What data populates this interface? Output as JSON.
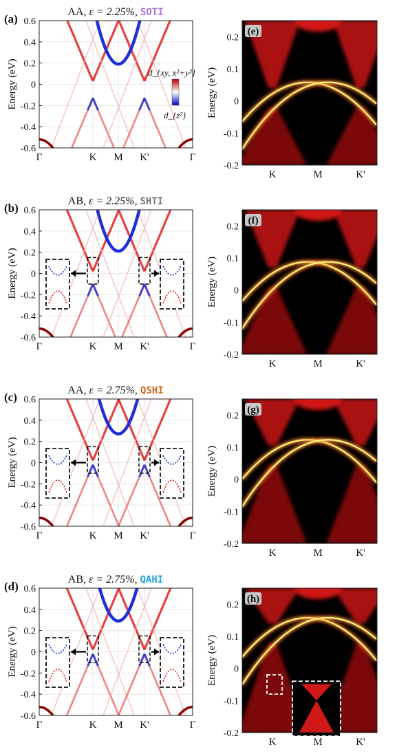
{
  "figure": {
    "colorbar": {
      "top_label": "d_{xy, x²+y²}",
      "bottom_label": "d_{z²}",
      "colors": [
        "#cc0000",
        "#ffffff",
        "#0000cc"
      ]
    },
    "colors": {
      "red": "#e02020",
      "blue": "#1f2fd8",
      "darkred": "#8b0000",
      "soti": "#b06fd8",
      "shti": "#7a7a7a",
      "qshi": "#d2691e",
      "qahi": "#1ea7e6"
    }
  },
  "chart_data": [
    {
      "id": "a",
      "panel_label": "(a)",
      "type": "line",
      "title": {
        "stack": "AA",
        "strain": "ε = 2.25%",
        "phase": "SOTI",
        "phase_color": "#b06fd8"
      },
      "ylabel": "Energy (eV)",
      "ylim": [
        -0.6,
        0.6
      ],
      "yticks": [
        "0.6",
        "0.4",
        "0.2",
        "0",
        "-0.2",
        "-0.4",
        "-0.6"
      ],
      "xticks": [
        "Γ",
        "K",
        "M",
        "K'",
        "Γ"
      ],
      "gap_conduction_min": 0.03,
      "gap_valence_max": -0.13,
      "m_band_min": 0.19
    },
    {
      "id": "b",
      "panel_label": "(b)",
      "type": "line",
      "title": {
        "stack": "AB",
        "strain": "ε = 2.25%",
        "phase": "SHTI",
        "phase_color": "#7a7a7a"
      },
      "ylabel": "Energy (eV)",
      "ylim": [
        -0.6,
        0.6
      ],
      "yticks": [
        "0.6",
        "0.4",
        "0.2",
        "0",
        "-0.2",
        "-0.4",
        "-0.6"
      ],
      "xticks": [
        "Γ",
        "K",
        "M",
        "K'",
        "Γ"
      ],
      "gap_conduction_min": 0.02,
      "gap_valence_max": -0.1,
      "m_band_min": 0.21
    },
    {
      "id": "c",
      "panel_label": "(c)",
      "type": "line",
      "title": {
        "stack": "AA",
        "strain": "ε = 2.75%",
        "phase": "QSHI",
        "phase_color": "#d2691e"
      },
      "ylabel": "Energy (eV)",
      "ylim": [
        -0.6,
        0.6
      ],
      "yticks": [
        "0.6",
        "0.4",
        "0.2",
        "0",
        "-0.2",
        "-0.4",
        "-0.6"
      ],
      "xticks": [
        "Γ",
        "K",
        "M",
        "K'",
        "Γ"
      ],
      "gap_conduction_min": 0.02,
      "gap_valence_max": -0.02,
      "m_band_min": 0.27
    },
    {
      "id": "d",
      "panel_label": "(d)",
      "type": "line",
      "title": {
        "stack": "AB",
        "strain": "ε = 2.75%",
        "phase": "QAHI",
        "phase_color": "#1ea7e6"
      },
      "ylabel": "Energy (eV)",
      "ylim": [
        -0.6,
        0.6
      ],
      "yticks": [
        "0.6",
        "0.4",
        "0.2",
        "0",
        "-0.2",
        "-0.4",
        "-0.6"
      ],
      "xticks": [
        "Γ",
        "K",
        "M",
        "K'",
        "Γ"
      ],
      "gap_conduction_min": 0.02,
      "gap_valence_max": -0.02,
      "m_band_min": 0.29
    },
    {
      "id": "e",
      "panel_label": "(e)",
      "type": "heatmap",
      "ylabel": "Energy (eV)",
      "ylim": [
        -0.2,
        0.25
      ],
      "yticks": [
        "0.2",
        "0.1",
        "0",
        "-0.1",
        "-0.2"
      ],
      "xticks": [
        "K",
        "M",
        "K'"
      ],
      "edge_state_crossing_energy": 0.02
    },
    {
      "id": "f",
      "panel_label": "(f)",
      "type": "heatmap",
      "ylabel": "Energy (eV)",
      "ylim": [
        -0.2,
        0.25
      ],
      "yticks": [
        "0.2",
        "0.1",
        "0",
        "-0.1",
        "-0.2"
      ],
      "xticks": [
        "K",
        "M",
        "K'"
      ],
      "edge_state_crossing_energy": 0.05
    },
    {
      "id": "g",
      "panel_label": "(g)",
      "type": "heatmap",
      "ylabel": "Energy (eV)",
      "ylim": [
        -0.2,
        0.25
      ],
      "yticks": [
        "0.2",
        "0.1",
        "0",
        "-0.1",
        "-0.2"
      ],
      "xticks": [
        "K",
        "M",
        "K'"
      ],
      "edge_state_crossing_energy": 0.085
    },
    {
      "id": "h",
      "panel_label": "(h)",
      "type": "heatmap",
      "ylabel": "Energy (eV)",
      "ylim": [
        -0.2,
        0.25
      ],
      "yticks": [
        "0.2",
        "0.1",
        "0",
        "-0.1",
        "-0.2"
      ],
      "xticks": [
        "K",
        "M",
        "K'"
      ],
      "edge_state_crossing_energy": 0.12
    }
  ]
}
